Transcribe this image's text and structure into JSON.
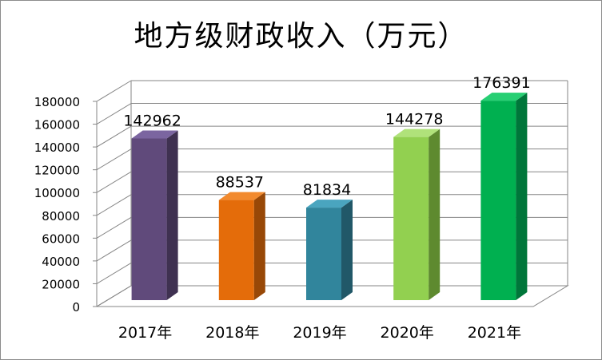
{
  "chart_data": {
    "type": "bar",
    "title": "地方级财政收入（万元）",
    "categories": [
      "2017年",
      "2018年",
      "2019年",
      "2020年",
      "2021年"
    ],
    "values": [
      142962,
      88537,
      81834,
      144278,
      176391
    ],
    "data_labels": [
      "142962",
      "88537",
      "81834",
      "144278",
      "176391"
    ],
    "ylim": [
      0,
      180000
    ],
    "yticks": [
      0,
      20000,
      40000,
      60000,
      80000,
      100000,
      120000,
      140000,
      160000,
      180000
    ],
    "ytick_labels": [
      "0",
      "20000",
      "40000",
      "60000",
      "80000",
      "100000",
      "120000",
      "140000",
      "160000",
      "180000"
    ],
    "grid": true,
    "style": "3d-column",
    "colors": [
      "#604a7b",
      "#e46c0a",
      "#31859c",
      "#92d050",
      "#00b050"
    ],
    "side_colors": [
      "#3f3151",
      "#984807",
      "#215868",
      "#5e8a2f",
      "#00763a"
    ],
    "top_colors": [
      "#7b65a0",
      "#f28a2e",
      "#4aa5bf",
      "#b0e27a",
      "#27cf73"
    ]
  }
}
